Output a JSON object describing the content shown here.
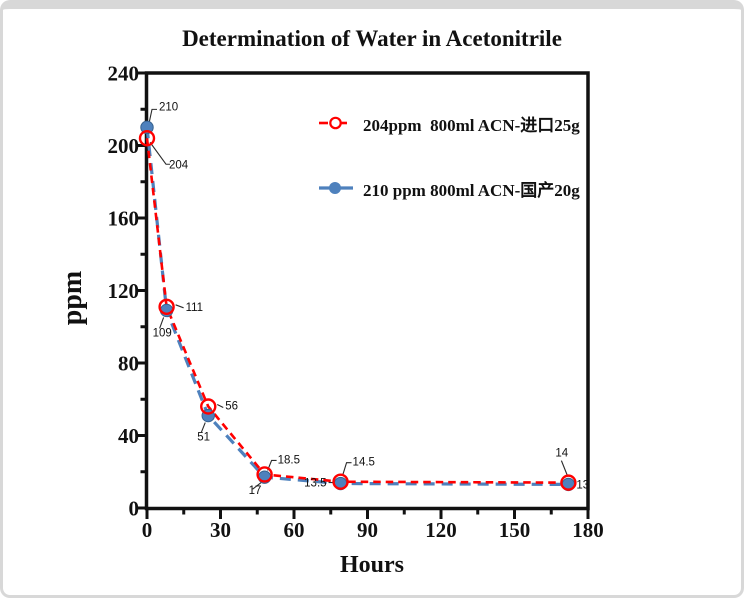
{
  "window": {
    "border_color": "#d8d8d8",
    "background": "#ffffff"
  },
  "chart_data": {
    "type": "line",
    "title": "Determination of Water in Acetonitrile",
    "xlabel": "Hours",
    "ylabel": "ppm",
    "xlim": [
      0,
      180
    ],
    "ylim": [
      0,
      240
    ],
    "x_major_ticks": [
      0,
      30,
      60,
      90,
      120,
      150,
      180
    ],
    "x_minor_ticks": [
      15,
      45,
      75,
      105,
      135,
      165
    ],
    "y_major_ticks": [
      0,
      40,
      80,
      120,
      160,
      200,
      240
    ],
    "y_minor_ticks": [
      20,
      60,
      100,
      140,
      180,
      220
    ],
    "grid": false,
    "legend_position": "upper-right-inside",
    "x": [
      0,
      8,
      25,
      48,
      79,
      172
    ],
    "series": [
      {
        "name": "204ppm  800ml ACN-进口25g",
        "color": "#ff0000",
        "line_style": "dashed",
        "marker": "open-circle",
        "values": [
          204,
          111,
          56,
          18.5,
          14.5,
          14
        ],
        "point_labels": [
          "204",
          "111",
          "56",
          "18.5",
          "14.5",
          "14"
        ]
      },
      {
        "name": "210 ppm 800ml ACN-国产20g",
        "color": "#4e81bd",
        "marker_edge": "#36618e",
        "line_style": "dashed",
        "marker": "filled-circle",
        "values": [
          210,
          109,
          51,
          17,
          13.5,
          13
        ],
        "point_labels": [
          "210",
          "109",
          "51",
          "17",
          "13.5",
          "13"
        ]
      }
    ]
  }
}
